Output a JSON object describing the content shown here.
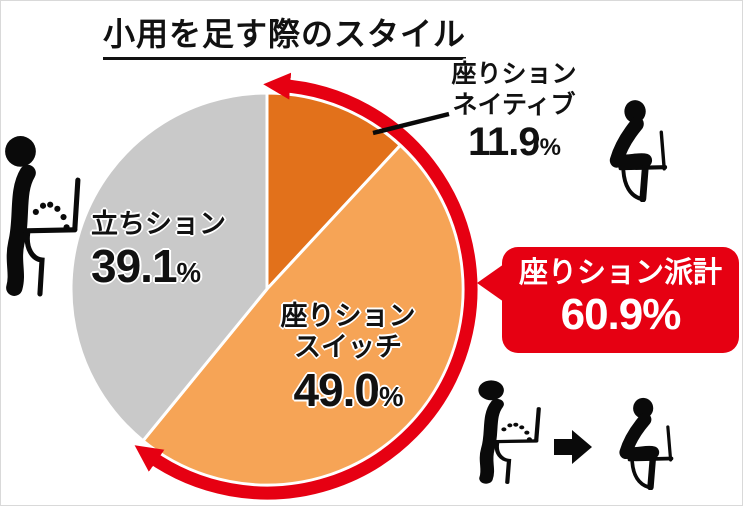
{
  "page": {
    "title": "小用を足す際のスタイル",
    "background": "#ffffff",
    "border_color": "#d9d9d9"
  },
  "chart_data": {
    "type": "pie",
    "title": "小用を足す際のスタイル",
    "categories": [
      "座りション ネイティブ",
      "座りション スイッチ",
      "立ちション"
    ],
    "values": [
      11.9,
      49.0,
      39.1
    ],
    "unit": "%",
    "colors": [
      "#e2711b",
      "#f6a456",
      "#c9c9c9"
    ],
    "start_angle_deg": 0,
    "direction": "clockwise",
    "slice_border_color": "#ffffff",
    "annotations": [
      {
        "type": "span-arc-with-callout",
        "label": "座りション派計",
        "value": 60.9,
        "unit": "%",
        "covers": [
          "座りション ネイティブ",
          "座りション スイッチ"
        ],
        "color": "#e60012"
      }
    ]
  },
  "labels": {
    "standing": {
      "line1": "立ちション",
      "value": "39.1",
      "unit": "%"
    },
    "switch": {
      "line1": "座りション",
      "line2": "スイッチ",
      "value": "49.0",
      "unit": "%"
    },
    "native": {
      "line1": "座りション",
      "line2": "ネイティブ",
      "value": "11.9",
      "unit": "%"
    }
  },
  "callout": {
    "title": "座りション派計",
    "value": "60.9",
    "unit": "%"
  },
  "icons": {
    "left": "standing-urination-pictogram",
    "top_right": "sitting-on-toilet-pictogram",
    "pair_left": "standing-urination-pictogram",
    "pair_arrow": "right-arrow",
    "pair_right": "sitting-on-toilet-pictogram"
  }
}
